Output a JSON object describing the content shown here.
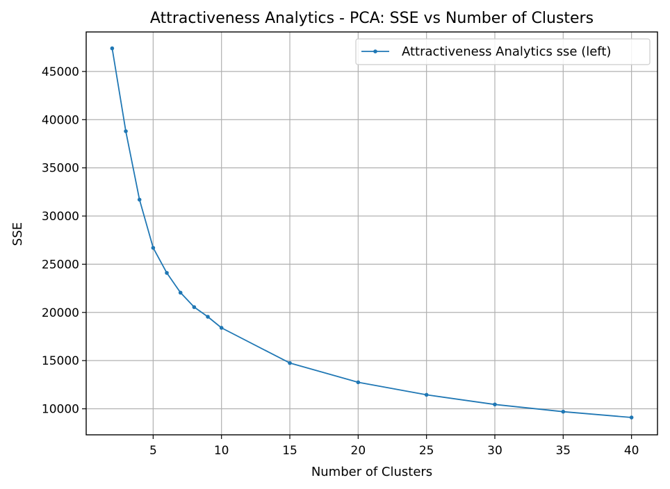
{
  "chart_data": {
    "type": "line",
    "title": "Attractiveness Analytics - PCA: SSE vs Number of Clusters",
    "xlabel": "Number of Clusters",
    "ylabel": "SSE",
    "xlim": [
      0.1,
      41.9
    ],
    "ylim": [
      7300,
      49100
    ],
    "grid": true,
    "legend_position": "top-right",
    "x_ticks": [
      5,
      10,
      15,
      20,
      25,
      30,
      35,
      40
    ],
    "x_tick_labels": [
      "5",
      "10",
      "15",
      "20",
      "25",
      "30",
      "35",
      "40"
    ],
    "y_ticks": [
      10000,
      15000,
      20000,
      25000,
      30000,
      35000,
      40000,
      45000
    ],
    "y_tick_labels": [
      "10000",
      "15000",
      "20000",
      "25000",
      "30000",
      "35000",
      "40000",
      "45000"
    ],
    "series": [
      {
        "name": "Attractiveness Analytics sse (left)",
        "color": "#1f77b4",
        "marker": "circle",
        "x": [
          2,
          3,
          4,
          5,
          6,
          7,
          8,
          9,
          10,
          15,
          20,
          25,
          30,
          35,
          40
        ],
        "y": [
          47400,
          38800,
          31700,
          26700,
          24100,
          22050,
          20550,
          19550,
          18400,
          14750,
          12750,
          11450,
          10450,
          9700,
          9100
        ]
      }
    ]
  }
}
